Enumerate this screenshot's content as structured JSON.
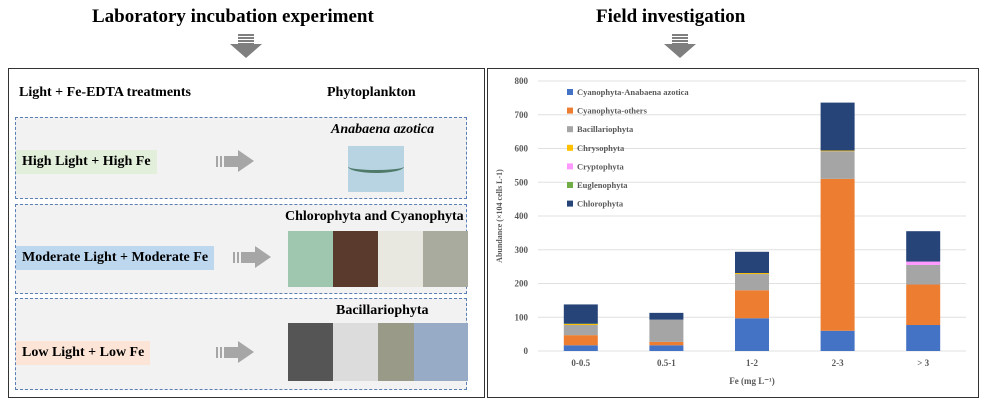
{
  "left": {
    "title": "Laboratory incubation experiment",
    "col1": "Light + Fe-EDTA treatments",
    "col2": "Phytoplankton",
    "rows": [
      {
        "treatment": "High Light + High Fe",
        "result": "Anabaena azotica",
        "bg": "#e2efda"
      },
      {
        "treatment": "Moderate Light + Moderate Fe",
        "result": "Chlorophyta and Cyanophyta",
        "bg": "#bdd7ee"
      },
      {
        "treatment": "Low Light + Low Fe",
        "result": "Bacillariophyta",
        "bg": "#fce4d6"
      }
    ]
  },
  "right": {
    "title": "Field investigation"
  },
  "chart_data": {
    "type": "bar",
    "stacked": true,
    "categories": [
      "0-0.5",
      "0.5-1",
      "1-2",
      "2-3",
      "> 3"
    ],
    "xlabel": "Fe (mg L⁻¹)",
    "ylabel": "Abundance (×104 cells L-1)",
    "ylim": [
      0,
      800
    ],
    "yticks": [
      0,
      100,
      200,
      300,
      400,
      500,
      600,
      700,
      800
    ],
    "grid": true,
    "legend": "top-left",
    "series": [
      {
        "name": "Cyanophyta-Anabaena azotica",
        "color": "#4472c4",
        "values": [
          17,
          17,
          97,
          60,
          77
        ]
      },
      {
        "name": "Cyanophyta-others",
        "color": "#ed7d31",
        "values": [
          30,
          10,
          83,
          450,
          120
        ]
      },
      {
        "name": "Bacillariophyta",
        "color": "#a5a5a5",
        "values": [
          30,
          66,
          48,
          82,
          58
        ]
      },
      {
        "name": "Chrysophyta",
        "color": "#ffc000",
        "values": [
          3,
          0,
          3,
          2,
          0
        ]
      },
      {
        "name": "Cryptophyta",
        "color": "#ff99ff",
        "values": [
          0,
          0,
          0,
          0,
          10
        ]
      },
      {
        "name": "Euglenophyta",
        "color": "#70ad47",
        "values": [
          1,
          0,
          0,
          0,
          0
        ]
      },
      {
        "name": "Chlorophyta",
        "color": "#264478",
        "values": [
          57,
          20,
          63,
          142,
          90
        ]
      }
    ]
  }
}
